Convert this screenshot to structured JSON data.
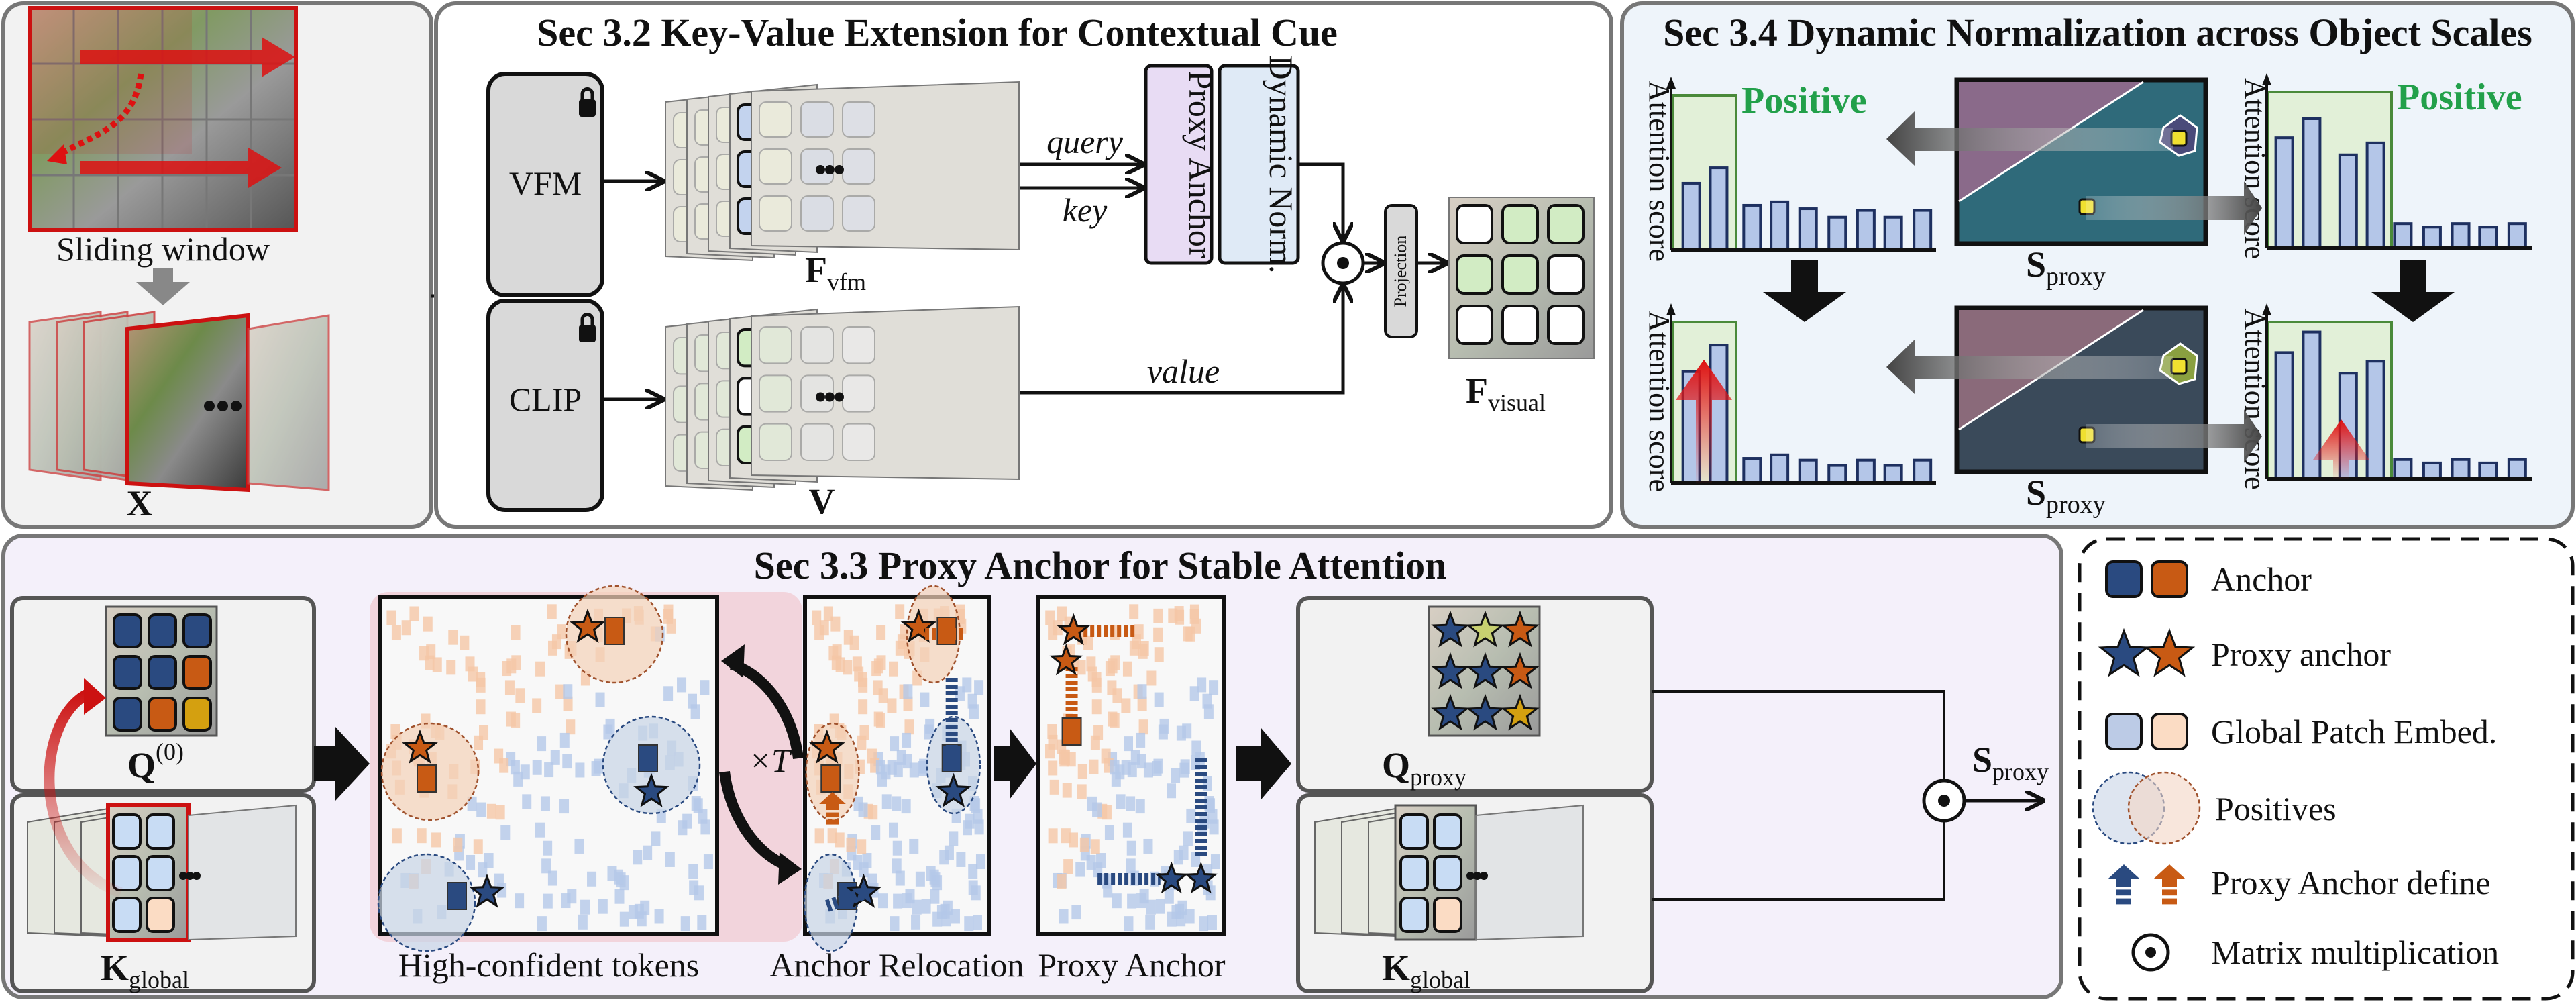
{
  "sliding_window_panel": {
    "caption": "Sliding window",
    "input_label": "X"
  },
  "kv_extension_panel": {
    "title": "Sec 3.2 Key-Value Extension for Contextual Cue",
    "vfm_label": "VFM",
    "clip_label": "CLIP",
    "f_vfm": {
      "main": "F",
      "sub": "vfm"
    },
    "v_label": "V",
    "query_label": "query",
    "key_label": "key",
    "value_label": "value",
    "proxy_anchor_label": "Proxy Anchor",
    "dynamic_norm_label": "Dynamic Norm.",
    "projection_label": "Projection",
    "f_visual": {
      "main": "F",
      "sub": "visual"
    },
    "lock_icon": "lock-icon"
  },
  "dynamic_norm_panel": {
    "title": "Sec 3.4 Dynamic Normalization across Object Scales",
    "y_axis_label": "Attention score",
    "positive_label": "Positive",
    "s_proxy": {
      "main": "S",
      "sub": "proxy"
    },
    "charts": [
      {
        "position": "top-left",
        "positives": 2,
        "bar_levels": [
          0.39,
          0.48,
          0.26,
          0.28,
          0.24,
          0.19,
          0.23,
          0.19,
          0.23
        ],
        "show_positive_label": true
      },
      {
        "position": "top-right",
        "positives": 4,
        "bar_levels": [
          0.64,
          0.75,
          0.54,
          0.61,
          0.14,
          0.12,
          0.14,
          0.12,
          0.14
        ],
        "show_positive_label": true
      },
      {
        "position": "bottom-left",
        "positives": 2,
        "bar_levels": [
          0.63,
          0.78,
          0.14,
          0.16,
          0.13,
          0.1,
          0.13,
          0.1,
          0.13
        ],
        "boost_arrow": "large"
      },
      {
        "position": "bottom-right",
        "positives": 4,
        "bar_levels": [
          0.73,
          0.85,
          0.61,
          0.68,
          0.11,
          0.09,
          0.11,
          0.09,
          0.11
        ],
        "boost_arrow": "small"
      }
    ]
  },
  "proxy_anchor_panel": {
    "title": "Sec 3.3 Proxy Anchor for Stable Attention",
    "q0": {
      "main": "Q",
      "sup": "(0)"
    },
    "k_global": {
      "main": "K",
      "sub": "global"
    },
    "stage_labels": [
      "High-confident tokens",
      "Anchor Relocation",
      "Proxy Anchor"
    ],
    "iteration_label": "×T",
    "q_proxy": {
      "main": "Q",
      "sub": "proxy"
    },
    "s_proxy": {
      "main": "S",
      "sub": "proxy"
    }
  },
  "legend": {
    "items": [
      {
        "icon": "anchor-square-icon",
        "label": "Anchor"
      },
      {
        "icon": "proxy-anchor-star-icon",
        "label": "Proxy anchor"
      },
      {
        "icon": "global-patch-embed-icon",
        "label": "Global Patch Embed."
      },
      {
        "icon": "positives-circle-icon",
        "label": "Positives"
      },
      {
        "icon": "proxy-anchor-define-arrow-icon",
        "label": "Proxy Anchor define"
      },
      {
        "icon": "matrix-multiplication-icon",
        "label": "Matrix multiplication"
      }
    ]
  },
  "colors": {
    "anchor_blue": "#2a4a80",
    "anchor_orange": "#c85a14",
    "patch_blue": "#bccbe6",
    "patch_orange": "#f8d8c0",
    "positive_green": "#22a04a",
    "highlight_red": "#cc1111",
    "panel_gray": "#f2f2f2",
    "panel_blue": "#eef4fa",
    "panel_purple": "#f4f0fa",
    "relocation_pink": "#f2d4dc",
    "proxy_anchor_box": "#e8dcf4",
    "dynamic_norm_box": "#dfeaf6"
  }
}
